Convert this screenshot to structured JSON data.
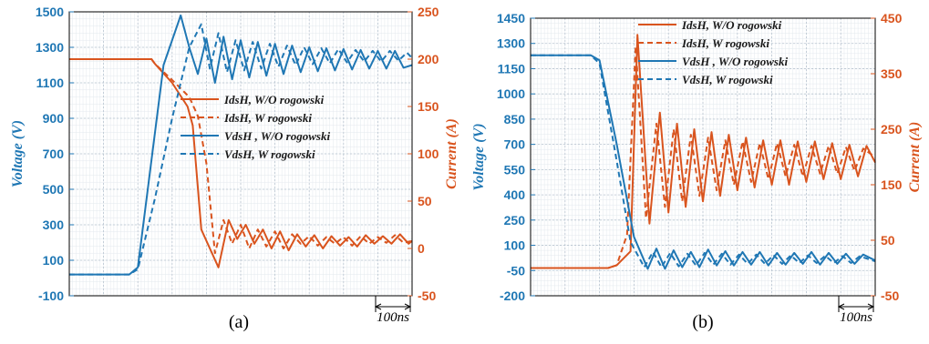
{
  "colors": {
    "voltage": "#1f77b4",
    "current": "#d9541e",
    "grid_major": "#b8c3cf",
    "grid_minor": "#e3e8ee"
  },
  "chart_data": [
    {
      "type": "line",
      "caption": "(a)",
      "xlabel": "",
      "scale_bar_label": "100ns",
      "y_left": {
        "label": "Voltage (V)",
        "lim": [
          -100,
          1500
        ],
        "ticks": [
          -100,
          100,
          300,
          500,
          700,
          900,
          1100,
          1300,
          1500
        ]
      },
      "y_right": {
        "label": "Current (A)",
        "lim": [
          -50,
          250
        ],
        "ticks": [
          -50,
          0,
          50,
          100,
          150,
          200,
          250
        ]
      },
      "legend": {
        "placement": "right-middle",
        "entries": [
          {
            "label": "IdsH, W/O rogowski",
            "color": "current",
            "dash": false
          },
          {
            "label": "IdsH, W rogowski",
            "color": "current",
            "dash": true
          },
          {
            "label": "VdsH , W/O rogowski",
            "color": "voltage",
            "dash": false
          },
          {
            "label": "VdsH, W rogowski",
            "color": "voltage",
            "dash": true
          }
        ]
      },
      "series": [
        {
          "name": "IdsH, W/O rogowski",
          "axis": "right",
          "color": "current",
          "dash": false,
          "x": [
            0,
            4.8,
            5,
            6,
            6.9,
            7.2,
            7.7,
            8.7,
            9.3,
            9.8,
            10.3,
            10.8,
            11.3,
            11.8,
            12.3,
            12.8,
            13.3,
            13.8,
            14.3,
            14.8,
            15.3,
            15.8,
            16.3,
            16.8,
            17.3,
            17.8,
            18.3,
            18.8,
            19.3,
            19.8,
            20
          ],
          "y": [
            200,
            200,
            195,
            175,
            150,
            130,
            20,
            -20,
            30,
            10,
            25,
            5,
            20,
            0,
            18,
            -2,
            15,
            2,
            14,
            0,
            13,
            3,
            12,
            2,
            14,
            5,
            13,
            5,
            15,
            5,
            8
          ]
        },
        {
          "name": "IdsH, W rogowski",
          "axis": "right",
          "color": "current",
          "dash": true,
          "x": [
            0,
            4.8,
            5,
            6,
            7,
            7.5,
            8,
            8.5,
            9,
            9.5,
            10,
            10.5,
            11,
            11.5,
            12,
            12.5,
            13,
            13.5,
            14,
            14.5,
            15,
            15.5,
            16,
            16.5,
            17,
            17.5,
            18,
            18.5,
            19,
            19.5,
            20
          ],
          "y": [
            200,
            200,
            195,
            178,
            160,
            140,
            90,
            -5,
            30,
            5,
            25,
            0,
            20,
            2,
            18,
            0,
            15,
            5,
            13,
            3,
            12,
            5,
            12,
            3,
            13,
            5,
            12,
            6,
            14,
            6,
            8
          ]
        },
        {
          "name": "VdsH , W/O rogowski",
          "axis": "left",
          "color": "voltage",
          "dash": false,
          "x": [
            0,
            3.5,
            4,
            5.5,
            6.5,
            7,
            7.5,
            8,
            8.5,
            9,
            9.5,
            10,
            10.5,
            11,
            11.5,
            12,
            12.5,
            13,
            13.5,
            14,
            14.5,
            15,
            15.5,
            16,
            16.5,
            17,
            17.5,
            18,
            18.5,
            19,
            19.5,
            20
          ],
          "y": [
            20,
            20,
            60,
            1200,
            1480,
            1300,
            1150,
            1350,
            1100,
            1360,
            1120,
            1340,
            1130,
            1330,
            1140,
            1320,
            1150,
            1310,
            1160,
            1300,
            1165,
            1295,
            1170,
            1290,
            1175,
            1285,
            1180,
            1280,
            1180,
            1280,
            1185,
            1200
          ]
        },
        {
          "name": "VdsH, W rogowski",
          "axis": "left",
          "color": "voltage",
          "dash": true,
          "x": [
            0,
            3.5,
            4,
            5,
            6,
            7,
            7.7,
            8.2,
            8.7,
            9.2,
            9.7,
            10.2,
            10.7,
            11.2,
            11.7,
            12.2,
            12.7,
            13.2,
            13.7,
            14.2,
            14.7,
            15.2,
            15.7,
            16.2,
            16.7,
            17.2,
            17.7,
            18.2,
            18.7,
            19.2,
            19.7,
            20
          ],
          "y": [
            20,
            20,
            50,
            450,
            900,
            1300,
            1430,
            1180,
            1380,
            1160,
            1340,
            1170,
            1330,
            1180,
            1320,
            1190,
            1310,
            1200,
            1300,
            1205,
            1295,
            1210,
            1290,
            1215,
            1285,
            1220,
            1280,
            1220,
            1280,
            1225,
            1270,
            1240
          ]
        }
      ]
    },
    {
      "type": "line",
      "caption": "(b)",
      "xlabel": "",
      "scale_bar_label": "100ns",
      "y_left": {
        "label": "Voltage (V)",
        "lim": [
          -200,
          1450
        ],
        "ticks": [
          -200,
          -50,
          100,
          250,
          400,
          550,
          700,
          850,
          1000,
          1150,
          1300,
          1450
        ]
      },
      "y_right": {
        "label": "Current (A)",
        "lim": [
          -50,
          450
        ],
        "ticks": [
          -50,
          50,
          150,
          250,
          350,
          450
        ]
      },
      "legend": {
        "placement": "top-right",
        "entries": [
          {
            "label": "IdsH, W/O rogowski",
            "color": "current",
            "dash": false
          },
          {
            "label": "IdsH, W rogowski",
            "color": "current",
            "dash": true
          },
          {
            "label": "VdsH , W/O rogowski",
            "color": "voltage",
            "dash": false
          },
          {
            "label": "VdsH, W rogowski",
            "color": "voltage",
            "dash": true
          }
        ]
      },
      "series": [
        {
          "name": "IdsH, W/O rogowski",
          "axis": "right",
          "color": "current",
          "dash": false,
          "x": [
            0,
            4.5,
            5,
            5.8,
            6.2,
            6.9,
            7.5,
            8,
            8.5,
            9,
            9.5,
            10,
            10.5,
            11,
            11.5,
            12,
            12.5,
            13,
            13.5,
            14,
            14.5,
            15,
            15.5,
            16,
            16.5,
            17,
            17.5,
            18,
            18.5,
            19,
            19.5,
            20
          ],
          "y": [
            0,
            0,
            5,
            30,
            420,
            80,
            280,
            100,
            260,
            110,
            250,
            120,
            245,
            130,
            240,
            140,
            235,
            145,
            230,
            150,
            230,
            150,
            228,
            155,
            228,
            160,
            225,
            160,
            222,
            165,
            220,
            190
          ]
        },
        {
          "name": "IdsH, W rogowski",
          "axis": "right",
          "color": "current",
          "dash": true,
          "x": [
            0,
            4.5,
            5,
            5.6,
            6.1,
            6.7,
            7.3,
            7.8,
            8.3,
            8.8,
            9.3,
            9.8,
            10.3,
            10.8,
            11.3,
            11.8,
            12.3,
            12.8,
            13.3,
            13.8,
            14.3,
            14.8,
            15.3,
            15.8,
            16.3,
            16.8,
            17.3,
            17.8,
            18.3,
            18.8,
            19.3,
            20
          ],
          "y": [
            0,
            0,
            5,
            60,
            400,
            90,
            260,
            110,
            250,
            120,
            240,
            130,
            235,
            140,
            230,
            150,
            228,
            155,
            225,
            160,
            225,
            165,
            222,
            165,
            220,
            170,
            220,
            170,
            218,
            175,
            215,
            200
          ]
        },
        {
          "name": "VdsH , W/O rogowski",
          "axis": "left",
          "color": "voltage",
          "dash": false,
          "x": [
            0,
            3.5,
            4,
            5,
            6,
            6.8,
            7.3,
            7.8,
            8.3,
            8.8,
            9.3,
            9.8,
            10.3,
            10.8,
            11.3,
            11.8,
            12.3,
            12.8,
            13.3,
            13.8,
            14.3,
            14.8,
            15.3,
            15.8,
            16.3,
            16.8,
            17.3,
            17.8,
            18.3,
            18.8,
            19.3,
            20
          ],
          "y": [
            1230,
            1230,
            1200,
            700,
            150,
            -40,
            80,
            -40,
            70,
            -30,
            60,
            -30,
            75,
            -20,
            65,
            -20,
            60,
            -15,
            60,
            -20,
            55,
            -15,
            55,
            -10,
            60,
            -15,
            55,
            -10,
            50,
            -10,
            45,
            10
          ]
        },
        {
          "name": "VdsH, W rogowski",
          "axis": "left",
          "color": "voltage",
          "dash": true,
          "x": [
            0,
            3.5,
            4,
            5,
            5.8,
            6.6,
            7.1,
            7.6,
            8.1,
            8.6,
            9.1,
            9.6,
            10.1,
            10.6,
            11.1,
            11.6,
            12.1,
            12.6,
            13.1,
            13.6,
            14.1,
            14.6,
            15.1,
            15.6,
            16.1,
            16.6,
            17.1,
            17.6,
            18.1,
            18.6,
            19.1,
            20
          ],
          "y": [
            1230,
            1230,
            1180,
            600,
            120,
            -30,
            60,
            -30,
            55,
            -25,
            50,
            -20,
            55,
            -15,
            50,
            -15,
            45,
            -10,
            45,
            -10,
            42,
            -10,
            40,
            -5,
            40,
            -5,
            38,
            -5,
            36,
            -5,
            35,
            5
          ]
        }
      ]
    }
  ]
}
